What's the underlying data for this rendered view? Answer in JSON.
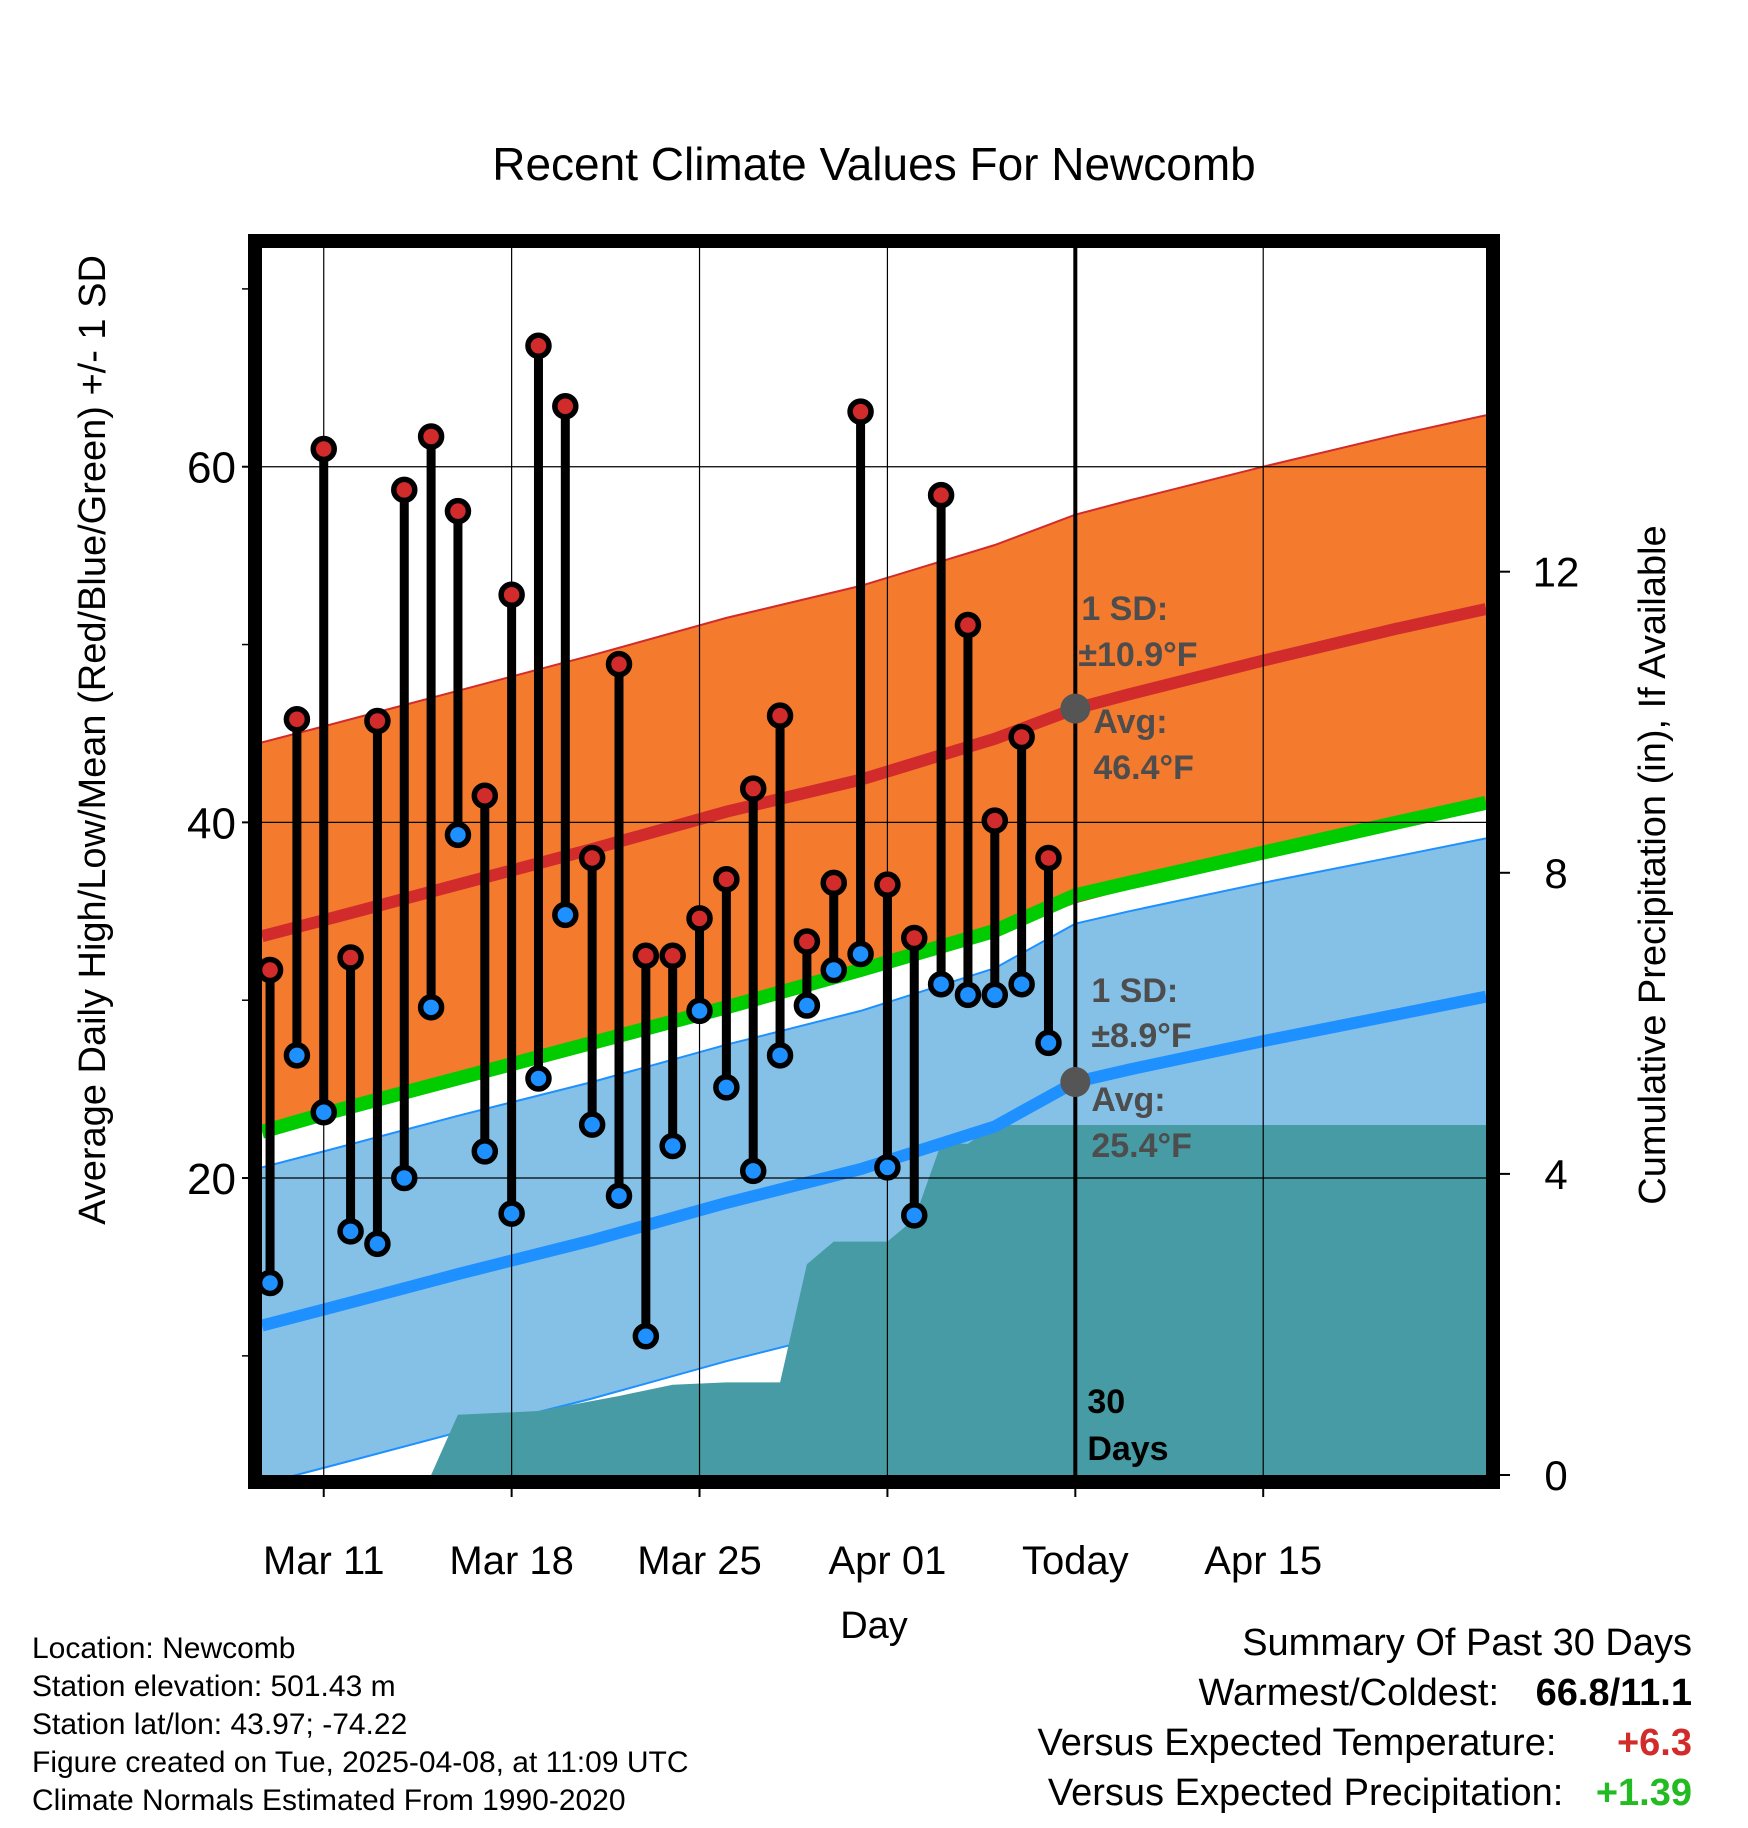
{
  "chart_data": {
    "type": "line",
    "title": "Recent Climate Values For Newcomb",
    "xlabel": "Day",
    "ylabel_left": "Average Daily High/Low/Mean (Red/Blue/Green) +/- 1 SD",
    "ylabel_right": "Cumulative Precipitation (in), If Available",
    "x_range": [
      -2.3,
      43.3
    ],
    "ylim": [
      3.3,
      72.3
    ],
    "ylim_right": [
      0,
      16.3
    ],
    "y_ticks": [
      20,
      40,
      60
    ],
    "y_ticks_right": [
      0,
      4,
      8,
      12
    ],
    "x_ticks": [
      {
        "day": 0,
        "label": "Mar 11"
      },
      {
        "day": 7,
        "label": "Mar 18"
      },
      {
        "day": 14,
        "label": "Mar 25"
      },
      {
        "day": 21,
        "label": "Apr 01"
      },
      {
        "day": 28,
        "label": "Today"
      },
      {
        "day": 35,
        "label": "Apr 15"
      }
    ],
    "today_day": 28,
    "observations": [
      {
        "day": -2,
        "high": 31.7,
        "low": 14.1
      },
      {
        "day": -1,
        "high": 45.8,
        "low": 26.9
      },
      {
        "day": 0,
        "high": 61.0,
        "low": 23.7
      },
      {
        "day": 1,
        "high": 32.4,
        "low": 17.0
      },
      {
        "day": 2,
        "high": 45.7,
        "low": 16.3
      },
      {
        "day": 3,
        "high": 58.7,
        "low": 20.0
      },
      {
        "day": 4,
        "high": 61.7,
        "low": 29.6
      },
      {
        "day": 5,
        "high": 57.5,
        "low": 39.3
      },
      {
        "day": 6,
        "high": 41.5,
        "low": 21.5
      },
      {
        "day": 7,
        "high": 52.8,
        "low": 18.0
      },
      {
        "day": 8,
        "high": 66.8,
        "low": 25.6
      },
      {
        "day": 9,
        "high": 63.4,
        "low": 34.8
      },
      {
        "day": 10,
        "high": 38.0,
        "low": 23.0
      },
      {
        "day": 11,
        "high": 48.9,
        "low": 19.0
      },
      {
        "day": 12,
        "high": 32.5,
        "low": 11.1
      },
      {
        "day": 13,
        "high": 32.5,
        "low": 21.8
      },
      {
        "day": 14,
        "high": 34.6,
        "low": 29.4
      },
      {
        "day": 15,
        "high": 36.8,
        "low": 25.1
      },
      {
        "day": 16,
        "high": 41.9,
        "low": 20.4
      },
      {
        "day": 17,
        "high": 46.0,
        "low": 26.9
      },
      {
        "day": 18,
        "high": 33.3,
        "low": 29.7
      },
      {
        "day": 19,
        "high": 36.6,
        "low": 31.7
      },
      {
        "day": 20,
        "high": 63.1,
        "low": 32.6
      },
      {
        "day": 21,
        "high": 36.5,
        "low": 20.6
      },
      {
        "day": 22,
        "high": 33.5,
        "low": 17.9
      },
      {
        "day": 23,
        "high": 58.4,
        "low": 30.9
      },
      {
        "day": 24,
        "high": 51.1,
        "low": 30.3
      },
      {
        "day": 25,
        "high": 40.1,
        "low": 30.3
      },
      {
        "day": 26,
        "high": 44.8,
        "low": 30.9
      },
      {
        "day": 27,
        "high": 38.0,
        "low": 27.6
      }
    ],
    "normals": {
      "days": [
        -2.3,
        0,
        5,
        10,
        15,
        20,
        25,
        28,
        30,
        35,
        40,
        43.3
      ],
      "high_mean": [
        33.6,
        34.5,
        36.5,
        38.5,
        40.6,
        42.4,
        44.7,
        46.4,
        47.2,
        49.1,
        50.9,
        52.0
      ],
      "low_mean": [
        11.7,
        12.6,
        14.6,
        16.5,
        18.6,
        20.5,
        22.9,
        25.4,
        26.1,
        27.7,
        29.2,
        30.2
      ],
      "avg_mean": [
        22.6,
        23.6,
        25.6,
        27.6,
        29.6,
        31.7,
        33.9,
        35.9,
        36.6,
        38.3,
        40.0,
        41.1
      ],
      "high_sd": 10.9,
      "low_sd": 8.9
    },
    "precipitation": {
      "days": [
        -2.3,
        4,
        5,
        8,
        11,
        13,
        15,
        17,
        18,
        19,
        20,
        21,
        22,
        23,
        24,
        25,
        30,
        43.3
      ],
      "cumulative": [
        0,
        0,
        0.8,
        0.85,
        1.05,
        1.2,
        1.23,
        1.23,
        2.8,
        3.1,
        3.1,
        3.1,
        3.4,
        4.4,
        4.4,
        4.65,
        4.65,
        4.65
      ]
    },
    "annotations": {
      "high_sd_label": "1 SD:",
      "high_sd_value": "±10.9°F",
      "high_avg_label": "Avg:",
      "high_avg_value": "46.4°F",
      "low_sd_label": "1 SD:",
      "low_sd_value": "±8.9°F",
      "low_avg_label": "Avg:",
      "low_avg_value": "25.4°F",
      "days_number": "30",
      "days_word": "Days"
    },
    "colors": {
      "high_band": "#f47a2e",
      "high_line": "#d22b2b",
      "low_band": "#85c1e6",
      "low_line": "#1e90ff",
      "avg_line": "#00cc00",
      "overlap": "#9a1414",
      "precip": "#469ba5",
      "high_dot": "#d22b2b",
      "low_dot": "#1e90ff",
      "annotation": "#4d4d4d"
    }
  },
  "info": {
    "location": "Location: Newcomb",
    "elevation": "Station elevation: 501.43 m",
    "latlon": "Station lat/lon: 43.97; -74.22",
    "created": "Figure created on Tue, 2025-04-08, at 11:09 UTC",
    "normals": "Climate Normals Estimated From 1990-2020"
  },
  "summary": {
    "title": "Summary Of Past 30 Days",
    "warmest_label": "Warmest/Coldest:",
    "warmest_value": "66.8/11.1",
    "temp_label": "Versus Expected Temperature:",
    "temp_value": "+6.3",
    "temp_color": "#d22b2b",
    "precip_label": "Versus Expected Precipitation:",
    "precip_value": "+1.39",
    "precip_color": "#22bb22"
  }
}
